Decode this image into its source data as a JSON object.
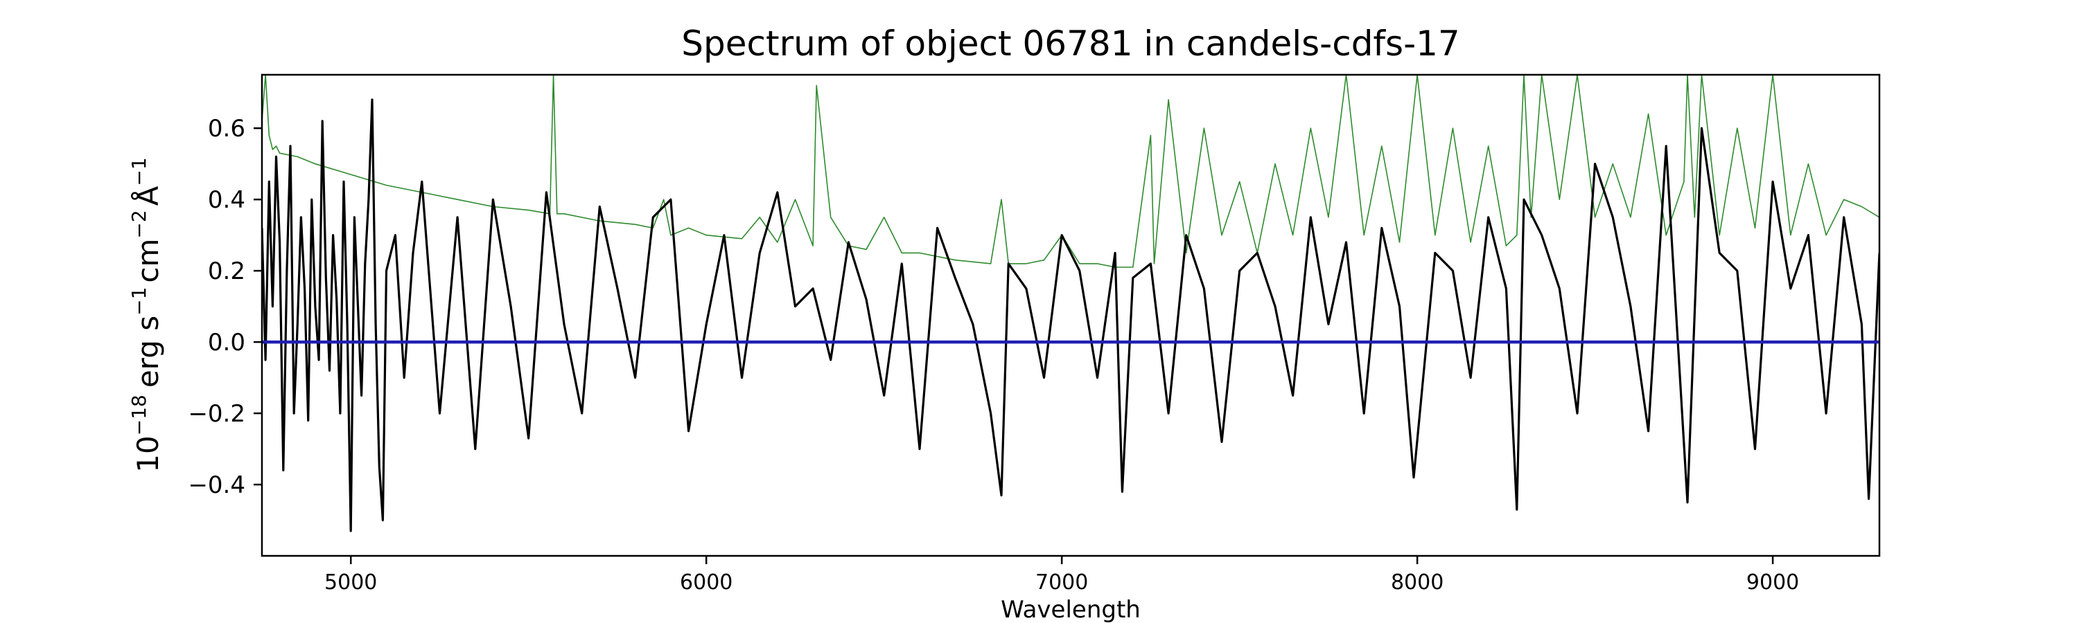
{
  "chart_data": {
    "type": "line",
    "title": "Spectrum of object 06781 in candels-cdfs-17",
    "xlabel": "Wavelength",
    "ylabel_base": "10",
    "ylabel_exp": "−18",
    "ylabel_unit_prefix": "erg s",
    "ylabel_s_exp": "−1",
    "ylabel_cm": "cm",
    "ylabel_cm_exp": "−2",
    "ylabel_A": "Å",
    "ylabel_A_exp": "−1",
    "xlim": [
      4750,
      9300
    ],
    "ylim": [
      -0.6,
      0.75
    ],
    "x_ticks": [
      5000,
      6000,
      7000,
      8000,
      9000
    ],
    "x_tick_labels": [
      "5000",
      "6000",
      "7000",
      "8000",
      "9000"
    ],
    "y_ticks": [
      -0.4,
      -0.2,
      0.0,
      0.2,
      0.4,
      0.6
    ],
    "y_tick_labels": [
      "−0.4",
      "−0.2",
      "0.0",
      "0.2",
      "0.4",
      "0.6"
    ],
    "grid": false,
    "colors": {
      "flux": "#000000",
      "error": "#2e8b2e",
      "zero": "#1f1fb4"
    },
    "series": [
      {
        "role": "flux",
        "x": [
          4750,
          4760,
          4770,
          4780,
          4790,
          4800,
          4810,
          4820,
          4830,
          4840,
          4850,
          4860,
          4870,
          4880,
          4890,
          4900,
          4910,
          4920,
          4930,
          4940,
          4950,
          4960,
          4970,
          4980,
          4990,
          5000,
          5010,
          5020,
          5030,
          5040,
          5050,
          5060,
          5070,
          5080,
          5090,
          5100,
          5125,
          5150,
          5175,
          5200,
          5250,
          5300,
          5350,
          5400,
          5450,
          5500,
          5550,
          5600,
          5650,
          5700,
          5750,
          5800,
          5850,
          5900,
          5950,
          6000,
          6050,
          6100,
          6150,
          6200,
          6250,
          6300,
          6350,
          6400,
          6450,
          6500,
          6550,
          6600,
          6650,
          6700,
          6750,
          6800,
          6830,
          6850,
          6900,
          6950,
          7000,
          7050,
          7100,
          7150,
          7170,
          7200,
          7250,
          7300,
          7350,
          7400,
          7450,
          7500,
          7550,
          7600,
          7650,
          7700,
          7750,
          7800,
          7850,
          7900,
          7950,
          7990,
          8050,
          8100,
          8150,
          8200,
          8250,
          8280,
          8300,
          8350,
          8400,
          8450,
          8500,
          8550,
          8600,
          8650,
          8700,
          8760,
          8800,
          8850,
          8900,
          8950,
          9000,
          9050,
          9100,
          9150,
          9200,
          9250,
          9270,
          9300
        ],
        "y": [
          0.32,
          -0.05,
          0.45,
          0.1,
          0.52,
          0.28,
          -0.36,
          0.2,
          0.55,
          -0.2,
          0.05,
          0.35,
          0.15,
          -0.22,
          0.4,
          0.1,
          -0.05,
          0.62,
          0.18,
          -0.08,
          0.3,
          0.12,
          -0.2,
          0.45,
          0.05,
          -0.53,
          0.35,
          0.1,
          -0.15,
          0.22,
          0.4,
          0.68,
          0.05,
          -0.35,
          -0.5,
          0.2,
          0.3,
          -0.1,
          0.25,
          0.45,
          -0.2,
          0.35,
          -0.3,
          0.4,
          0.1,
          -0.27,
          0.42,
          0.05,
          -0.2,
          0.38,
          0.15,
          -0.1,
          0.35,
          0.4,
          -0.25,
          0.05,
          0.3,
          -0.1,
          0.25,
          0.42,
          0.1,
          0.15,
          -0.05,
          0.28,
          0.12,
          -0.15,
          0.22,
          -0.3,
          0.32,
          0.18,
          0.05,
          -0.2,
          -0.43,
          0.22,
          0.15,
          -0.1,
          0.3,
          0.2,
          -0.1,
          0.25,
          -0.42,
          0.18,
          0.22,
          -0.2,
          0.3,
          0.15,
          -0.28,
          0.2,
          0.25,
          0.1,
          -0.15,
          0.35,
          0.05,
          0.28,
          -0.2,
          0.32,
          0.1,
          -0.38,
          0.25,
          0.2,
          -0.1,
          0.35,
          0.15,
          -0.47,
          0.4,
          0.3,
          0.15,
          -0.2,
          0.5,
          0.35,
          0.1,
          -0.25,
          0.55,
          -0.45,
          0.6,
          0.25,
          0.2,
          -0.3,
          0.45,
          0.15,
          0.3,
          -0.2,
          0.35,
          0.05,
          -0.44,
          0.25
        ]
      },
      {
        "role": "error",
        "x": [
          4750,
          4760,
          4770,
          4780,
          4790,
          4800,
          4850,
          4900,
          5000,
          5100,
          5200,
          5300,
          5400,
          5500,
          5560,
          5570,
          5580,
          5600,
          5700,
          5800,
          5850,
          5880,
          5900,
          5950,
          6000,
          6100,
          6150,
          6200,
          6250,
          6300,
          6310,
          6350,
          6400,
          6450,
          6500,
          6550,
          6600,
          6700,
          6800,
          6830,
          6850,
          6900,
          6950,
          7000,
          7050,
          7100,
          7150,
          7200,
          7250,
          7260,
          7300,
          7350,
          7400,
          7450,
          7500,
          7550,
          7600,
          7650,
          7700,
          7750,
          7800,
          7850,
          7900,
          7950,
          8000,
          8050,
          8100,
          8150,
          8200,
          8250,
          8280,
          8300,
          8320,
          8350,
          8400,
          8450,
          8500,
          8550,
          8600,
          8650,
          8700,
          8750,
          8760,
          8780,
          8800,
          8850,
          8900,
          8950,
          9000,
          9050,
          9100,
          9150,
          9200,
          9250,
          9300
        ],
        "y": [
          0.62,
          0.75,
          0.58,
          0.54,
          0.55,
          0.53,
          0.52,
          0.5,
          0.47,
          0.44,
          0.42,
          0.4,
          0.38,
          0.37,
          0.36,
          0.75,
          0.36,
          0.36,
          0.34,
          0.33,
          0.32,
          0.4,
          0.3,
          0.32,
          0.3,
          0.29,
          0.35,
          0.28,
          0.4,
          0.27,
          0.72,
          0.35,
          0.27,
          0.26,
          0.35,
          0.25,
          0.25,
          0.23,
          0.22,
          0.4,
          0.22,
          0.22,
          0.23,
          0.3,
          0.22,
          0.22,
          0.21,
          0.21,
          0.58,
          0.22,
          0.68,
          0.25,
          0.6,
          0.3,
          0.45,
          0.25,
          0.5,
          0.3,
          0.6,
          0.35,
          0.75,
          0.3,
          0.55,
          0.28,
          0.75,
          0.3,
          0.6,
          0.28,
          0.55,
          0.27,
          0.3,
          0.75,
          0.35,
          0.75,
          0.4,
          0.75,
          0.35,
          0.5,
          0.35,
          0.64,
          0.3,
          0.45,
          0.75,
          0.35,
          0.75,
          0.3,
          0.6,
          0.32,
          0.75,
          0.3,
          0.5,
          0.3,
          0.4,
          0.38,
          0.35
        ]
      },
      {
        "role": "zero",
        "x": [
          4750,
          9300
        ],
        "y": [
          0.0,
          0.0
        ]
      }
    ]
  }
}
